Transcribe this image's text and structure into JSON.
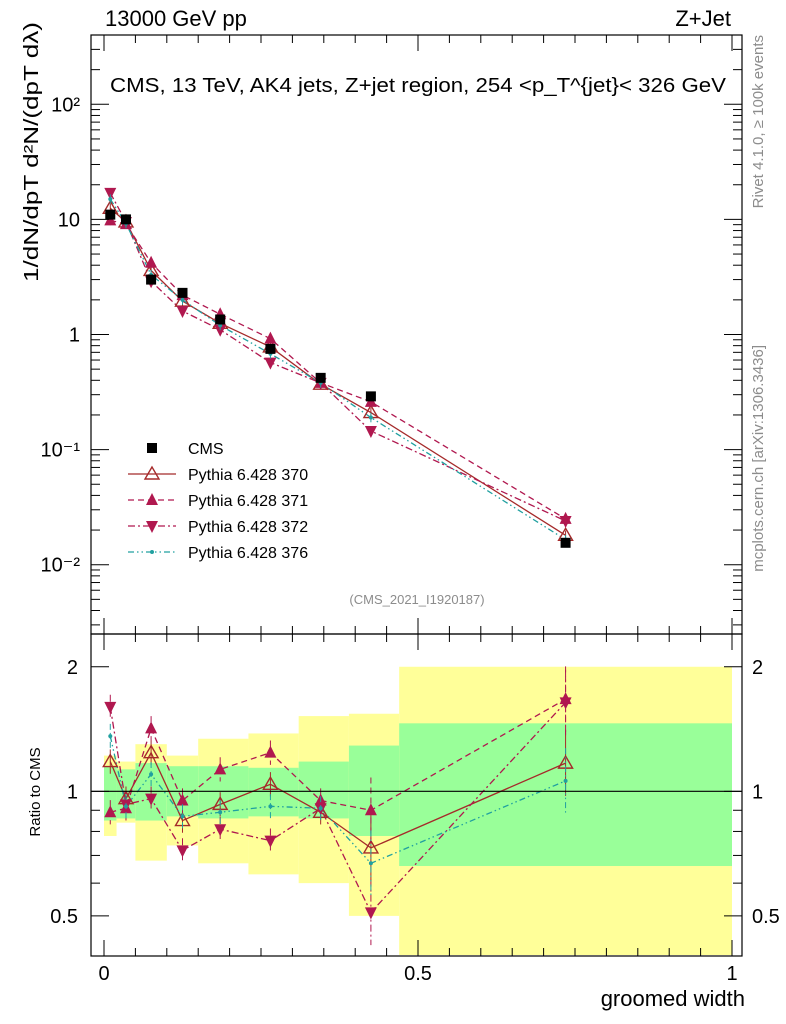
{
  "header": {
    "left": "13000 GeV pp",
    "right": "Z+Jet"
  },
  "side_labels": {
    "rivet": "Rivet 4.1.0, ≥ 100k events",
    "mcplots": "mcplots.cern.ch [arXiv:1306.3436]"
  },
  "chart_data": [
    {
      "type": "scatter",
      "title": "CMS, 13 TeV, AK4 jets, Z+jet region, 254 <p_T^{jet}< 326 GeV",
      "ylabel": "1/dN/dpT d²N/(dpT dλ)",
      "ylog": true,
      "xlim": [
        0,
        1
      ],
      "ylim": [
        0.0025,
        400
      ],
      "y_ticks": [
        {
          "value": 0.01,
          "label": "10⁻²"
        },
        {
          "value": 0.1,
          "label": "10⁻¹"
        },
        {
          "value": 1,
          "label": "1"
        },
        {
          "value": 10,
          "label": "10"
        },
        {
          "value": 100,
          "label": "10²"
        }
      ],
      "watermark": "(CMS_2021_I1920187)",
      "x": [
        0.01,
        0.035,
        0.075,
        0.125,
        0.185,
        0.265,
        0.345,
        0.425,
        0.735
      ],
      "series": [
        {
          "name": "CMS",
          "style": "data",
          "color": "#000000",
          "values": [
            11.0,
            10.0,
            3.0,
            2.3,
            1.35,
            0.75,
            0.42,
            0.29,
            0.0155
          ]
        },
        {
          "name": "Pythia 6.428 370",
          "style": "solid",
          "marker": "open-triangle-up",
          "color": "#a52a2a",
          "values": [
            12.5,
            9.5,
            3.6,
            1.95,
            1.25,
            0.78,
            0.37,
            0.21,
            0.018
          ]
        },
        {
          "name": "Pythia 6.428 371",
          "style": "dashed",
          "marker": "filled-triangle-up",
          "color": "#b0184f",
          "values": [
            9.8,
            9.1,
            4.2,
            2.2,
            1.5,
            0.92,
            0.38,
            0.26,
            0.025
          ]
        },
        {
          "name": "Pythia 6.428 372",
          "style": "dashdot",
          "marker": "filled-triangle-down",
          "color": "#b0184f",
          "values": [
            17.0,
            9.5,
            2.9,
            1.6,
            1.1,
            0.57,
            0.38,
            0.145,
            0.024
          ]
        },
        {
          "name": "Pythia 6.428 376",
          "style": "dashdotdot",
          "marker": "dot",
          "color": "#20a0a0",
          "values": [
            15.0,
            9.2,
            3.3,
            2.0,
            1.2,
            0.68,
            0.38,
            0.19,
            0.0165
          ]
        }
      ]
    },
    {
      "type": "scatter",
      "ylabel": "Ratio to CMS",
      "xlabel": "groomed width",
      "ylog": true,
      "xlim": [
        0,
        1
      ],
      "ylim": [
        0.4,
        2.4
      ],
      "x_ticks": [
        {
          "value": 0,
          "label": "0"
        },
        {
          "value": 0.5,
          "label": "0.5"
        },
        {
          "value": 1,
          "label": "1"
        }
      ],
      "y_ticks": [
        {
          "value": 0.5,
          "label": "0.5"
        },
        {
          "value": 1,
          "label": "1"
        },
        {
          "value": 2,
          "label": "2"
        }
      ],
      "bands": [
        {
          "x0": 0.0,
          "x1": 0.02,
          "green": [
            0.85,
            1.15
          ],
          "yellow": [
            0.78,
            1.22
          ]
        },
        {
          "x0": 0.02,
          "x1": 0.05,
          "green": [
            0.86,
            1.13
          ],
          "yellow": [
            0.84,
            1.18
          ]
        },
        {
          "x0": 0.05,
          "x1": 0.1,
          "green": [
            0.85,
            1.17
          ],
          "yellow": [
            0.68,
            1.3
          ]
        },
        {
          "x0": 0.1,
          "x1": 0.15,
          "green": [
            0.87,
            1.15
          ],
          "yellow": [
            0.74,
            1.22
          ]
        },
        {
          "x0": 0.15,
          "x1": 0.23,
          "green": [
            0.86,
            1.15
          ],
          "yellow": [
            0.67,
            1.34
          ]
        },
        {
          "x0": 0.23,
          "x1": 0.31,
          "green": [
            0.87,
            1.14
          ],
          "yellow": [
            0.63,
            1.38
          ]
        },
        {
          "x0": 0.31,
          "x1": 0.39,
          "green": [
            0.86,
            1.18
          ],
          "yellow": [
            0.6,
            1.52
          ]
        },
        {
          "x0": 0.39,
          "x1": 0.47,
          "green": [
            0.78,
            1.29
          ],
          "yellow": [
            0.5,
            1.54
          ]
        },
        {
          "x0": 0.47,
          "x1": 1.0,
          "green": [
            0.66,
            1.46
          ],
          "yellow": [
            0.3,
            2.0
          ]
        }
      ],
      "x": [
        0.01,
        0.035,
        0.075,
        0.125,
        0.185,
        0.265,
        0.345,
        0.425,
        0.735
      ],
      "series": [
        {
          "name": "Pythia 6.428 370",
          "values": [
            1.18,
            0.96,
            1.24,
            0.85,
            0.93,
            1.04,
            0.89,
            0.73,
            1.17
          ]
        },
        {
          "name": "Pythia 6.428 371",
          "values": [
            0.89,
            0.91,
            1.42,
            0.95,
            1.13,
            1.24,
            0.95,
            0.9,
            1.67
          ]
        },
        {
          "name": "Pythia 6.428 372",
          "values": [
            1.6,
            0.93,
            0.96,
            0.72,
            0.81,
            0.76,
            0.91,
            0.51,
            1.64
          ]
        },
        {
          "name": "Pythia 6.428 376",
          "values": [
            1.36,
            0.92,
            1.1,
            0.87,
            0.89,
            0.92,
            0.91,
            0.67,
            1.06
          ]
        }
      ]
    }
  ]
}
